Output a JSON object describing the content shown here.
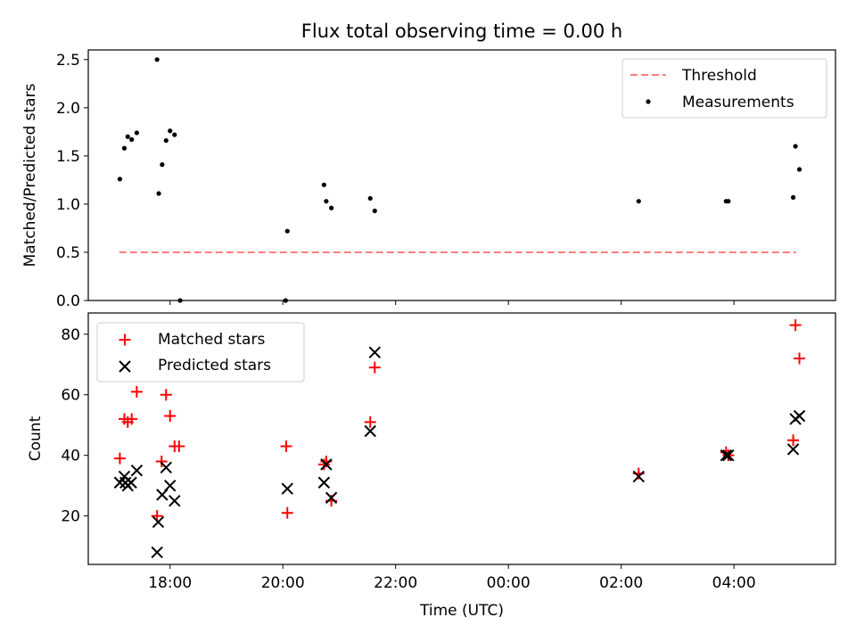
{
  "chart_data": [
    {
      "type": "scatter",
      "title": "Flux total observing time = 0.00 h",
      "xlabel": "",
      "ylabel": "Matched/Predicted stars",
      "xlim": [
        16.55,
        29.8
      ],
      "ylim": [
        0.0,
        2.6
      ],
      "yticks": [
        0.0,
        0.5,
        1.0,
        1.5,
        2.0,
        2.5
      ],
      "ytick_labels": [
        "0.0",
        "0.5",
        "1.0",
        "1.5",
        "2.0",
        "2.5"
      ],
      "xticks": [
        18,
        20,
        22,
        24,
        26,
        28
      ],
      "legend_position": "top-right",
      "series": [
        {
          "name": "Threshold",
          "kind": "line",
          "style": "dashed",
          "color": "#ff7f7f",
          "x": [
            17.1,
            29.1
          ],
          "y": [
            0.5,
            0.5
          ]
        },
        {
          "name": "Measurements",
          "kind": "points",
          "marker": "dot",
          "color": "#000000",
          "x": [
            17.11,
            17.19,
            17.25,
            17.32,
            17.41,
            17.77,
            17.8,
            17.86,
            17.93,
            18.0,
            18.08,
            18.18,
            20.05,
            20.08,
            20.73,
            20.77,
            20.86,
            21.55,
            21.63,
            26.31,
            27.86,
            27.9,
            29.05,
            29.09,
            29.16
          ],
          "y": [
            1.26,
            1.58,
            1.7,
            1.67,
            1.74,
            2.5,
            1.11,
            1.41,
            1.66,
            1.76,
            1.72,
            0.0,
            0.0,
            0.72,
            1.2,
            1.03,
            0.96,
            1.06,
            0.93,
            1.03,
            1.03,
            1.03,
            1.07,
            1.6,
            1.36
          ]
        }
      ]
    },
    {
      "type": "scatter",
      "title": "",
      "xlabel": "Time (UTC)",
      "ylabel": "Count",
      "xlim": [
        16.55,
        29.8
      ],
      "ylim": [
        4,
        87
      ],
      "yticks": [
        20,
        40,
        60,
        80
      ],
      "ytick_labels": [
        "20",
        "40",
        "60",
        "80"
      ],
      "xticks": [
        18,
        20,
        22,
        24,
        26,
        28
      ],
      "xtick_labels": [
        "18:00",
        "20:00",
        "22:00",
        "00:00",
        "02:00",
        "04:00"
      ],
      "legend_position": "top-left",
      "series": [
        {
          "name": "Matched stars",
          "kind": "points",
          "marker": "plus",
          "color": "#ff0000",
          "x": [
            17.11,
            17.19,
            17.25,
            17.32,
            17.41,
            17.77,
            17.85,
            17.93,
            18.0,
            18.08,
            18.16,
            20.06,
            20.08,
            20.73,
            20.77,
            20.86,
            21.55,
            21.63,
            26.31,
            27.86,
            27.9,
            29.05,
            29.09,
            29.16
          ],
          "y": [
            39,
            52,
            51,
            52,
            61,
            20,
            38,
            60,
            53,
            43,
            43,
            43,
            21,
            37,
            38,
            25,
            51,
            69,
            34,
            41,
            40,
            45,
            83,
            72
          ]
        },
        {
          "name": "Predicted stars",
          "kind": "points",
          "marker": "x",
          "color": "#000000",
          "x": [
            17.11,
            17.19,
            17.21,
            17.25,
            17.31,
            17.41,
            17.77,
            17.79,
            17.86,
            17.93,
            18.0,
            18.08,
            20.08,
            20.73,
            20.77,
            20.86,
            21.55,
            21.63,
            26.31,
            27.86,
            27.9,
            29.05,
            29.09,
            29.16
          ],
          "y": [
            31,
            33,
            31,
            30,
            31,
            35,
            8,
            18,
            27,
            36,
            30,
            25,
            29,
            31,
            37,
            26,
            48,
            74,
            33,
            40,
            40,
            42,
            52,
            53
          ]
        }
      ]
    }
  ]
}
